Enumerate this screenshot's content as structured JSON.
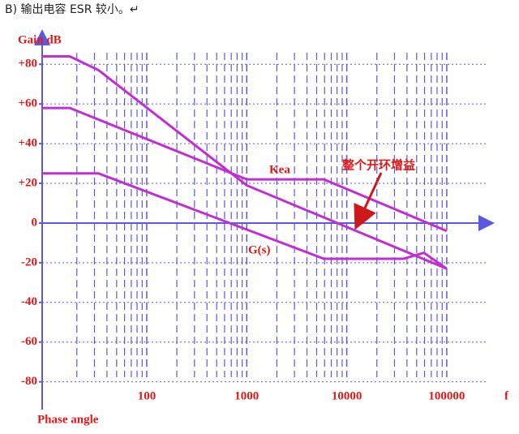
{
  "header": "B) 输出电容 ESR 较小。↵",
  "chart_data": {
    "type": "line",
    "ylabel": "Gain dB",
    "ylabel2": "Phase angle",
    "xlabel": "f",
    "xscale": "log",
    "xlim": [
      9,
      250000
    ],
    "ylim": [
      -92,
      94
    ],
    "xticks": [
      100,
      1000,
      10000,
      100000
    ],
    "yticks": [
      {
        "value": 80,
        "label": "+80"
      },
      {
        "value": 60,
        "label": "+60"
      },
      {
        "value": 40,
        "label": "+40"
      },
      {
        "value": 20,
        "label": "+20"
      },
      0,
      -20,
      -40,
      -60,
      -80
    ],
    "grid": true,
    "series": [
      {
        "name": "整个开环增益",
        "color": "#c22ed6",
        "x": [
          9,
          17,
          33,
          1000,
          100000
        ],
        "values": [
          84,
          84,
          77,
          19,
          -23
        ]
      },
      {
        "name": "Kea",
        "color": "#c22ed6",
        "x": [
          9,
          17,
          1000,
          5900,
          100000
        ],
        "values": [
          58,
          58,
          22,
          22,
          -4
        ]
      },
      {
        "name": "G(s)",
        "color": "#c22ed6",
        "x": [
          9,
          33,
          5900,
          37000,
          59000,
          100000
        ],
        "values": [
          25,
          25,
          -18,
          -18,
          -15,
          -23
        ]
      }
    ]
  }
}
